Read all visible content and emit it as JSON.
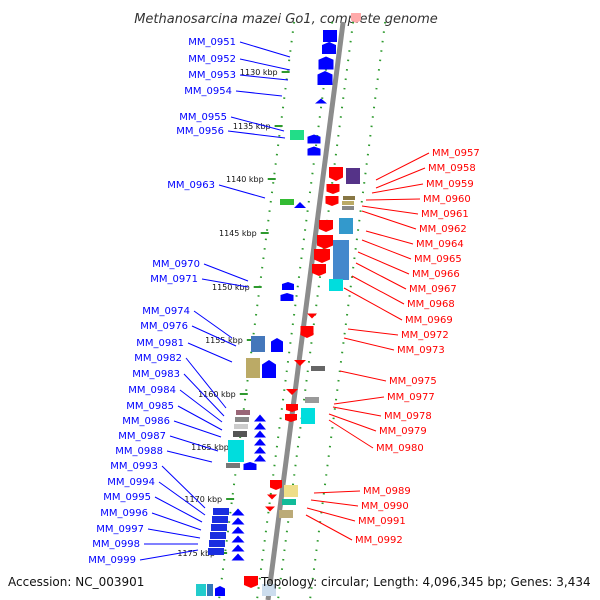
{
  "header": {
    "title": "Methanosarcina mazei Go1, complete genome"
  },
  "footer": {
    "accession": "Accession: NC_003901",
    "info": "Topology: circular; Length: 4,096,345 bp; Genes: 3,434"
  },
  "colors": {
    "forward_label": "#0000ff",
    "reverse_label": "#ff0000",
    "backbone": "#8c8c8c",
    "tick_dots": "#2e9a2e"
  },
  "kbp_labels": [
    "1130 kbp",
    "1135 kbp",
    "1140 kbp",
    "1145 kbp",
    "1150 kbp",
    "1155 kbp",
    "1160 kbp",
    "1165 kbp",
    "1170 kbp",
    "1175 kbp"
  ],
  "left_labels": [
    "MM_0951",
    "MM_0952",
    "MM_0953",
    "MM_0954",
    "MM_0955",
    "MM_0956",
    "MM_0963",
    "MM_0970",
    "MM_0971",
    "MM_0974",
    "MM_0976",
    "MM_0981",
    "MM_0982",
    "MM_0983",
    "MM_0984",
    "MM_0985",
    "MM_0986",
    "MM_0987",
    "MM_0988",
    "MM_0993",
    "MM_0994",
    "MM_0995",
    "MM_0996",
    "MM_0997",
    "MM_0998",
    "MM_0999"
  ],
  "right_labels": [
    "MM_0957",
    "MM_0958",
    "MM_0959",
    "MM_0960",
    "MM_0961",
    "MM_0962",
    "MM_0964",
    "MM_0965",
    "MM_0966",
    "MM_0967",
    "MM_0968",
    "MM_0969",
    "MM_0972",
    "MM_0973",
    "MM_0975",
    "MM_0977",
    "MM_0978",
    "MM_0979",
    "MM_0980",
    "MM_0989",
    "MM_0990",
    "MM_0991",
    "MM_0992"
  ]
}
